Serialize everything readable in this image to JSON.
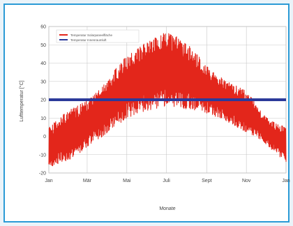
{
  "chart_data": {
    "type": "line",
    "title": "",
    "xlabel": "Monate",
    "ylabel": "Lufttemperatur [°C]",
    "ylim": [
      -20,
      60
    ],
    "yticks": [
      -20,
      -10,
      0,
      10,
      20,
      30,
      40,
      50,
      60
    ],
    "xlim": [
      0,
      365
    ],
    "xticks": [
      {
        "label": "Jan",
        "day": 0
      },
      {
        "label": "Mär",
        "day": 59
      },
      {
        "label": "Mai",
        "day": 120
      },
      {
        "label": "Juli",
        "day": 181
      },
      {
        "label": "Sept",
        "day": 243
      },
      {
        "label": "Nov",
        "day": 304
      },
      {
        "label": "Jan",
        "day": 365
      }
    ],
    "grid": true,
    "legend_position": "top-left",
    "series": [
      {
        "name": "Temperatur Solarpaneelfläche",
        "color": "#e3261b",
        "envelope": {
          "days": [
            0,
            15,
            30,
            45,
            60,
            75,
            90,
            105,
            120,
            135,
            150,
            165,
            180,
            195,
            210,
            225,
            240,
            255,
            270,
            285,
            300,
            315,
            330,
            345,
            365
          ],
          "low": [
            -18,
            -15,
            -13,
            -10,
            -6,
            -2,
            2,
            6,
            10,
            12,
            14,
            15,
            16,
            16,
            15,
            14,
            13,
            11,
            9,
            6,
            3,
            0,
            -3,
            -8,
            -14
          ],
          "high": [
            5,
            10,
            14,
            17,
            20,
            25,
            30,
            38,
            44,
            48,
            52,
            55,
            57,
            55,
            52,
            46,
            40,
            35,
            31,
            28,
            26,
            20,
            12,
            8,
            5
          ]
        }
      },
      {
        "name": "Temperatur Innenraumluft",
        "color": "#2b3a9a",
        "x": [
          0,
          365
        ],
        "y": [
          20,
          20
        ]
      }
    ]
  }
}
